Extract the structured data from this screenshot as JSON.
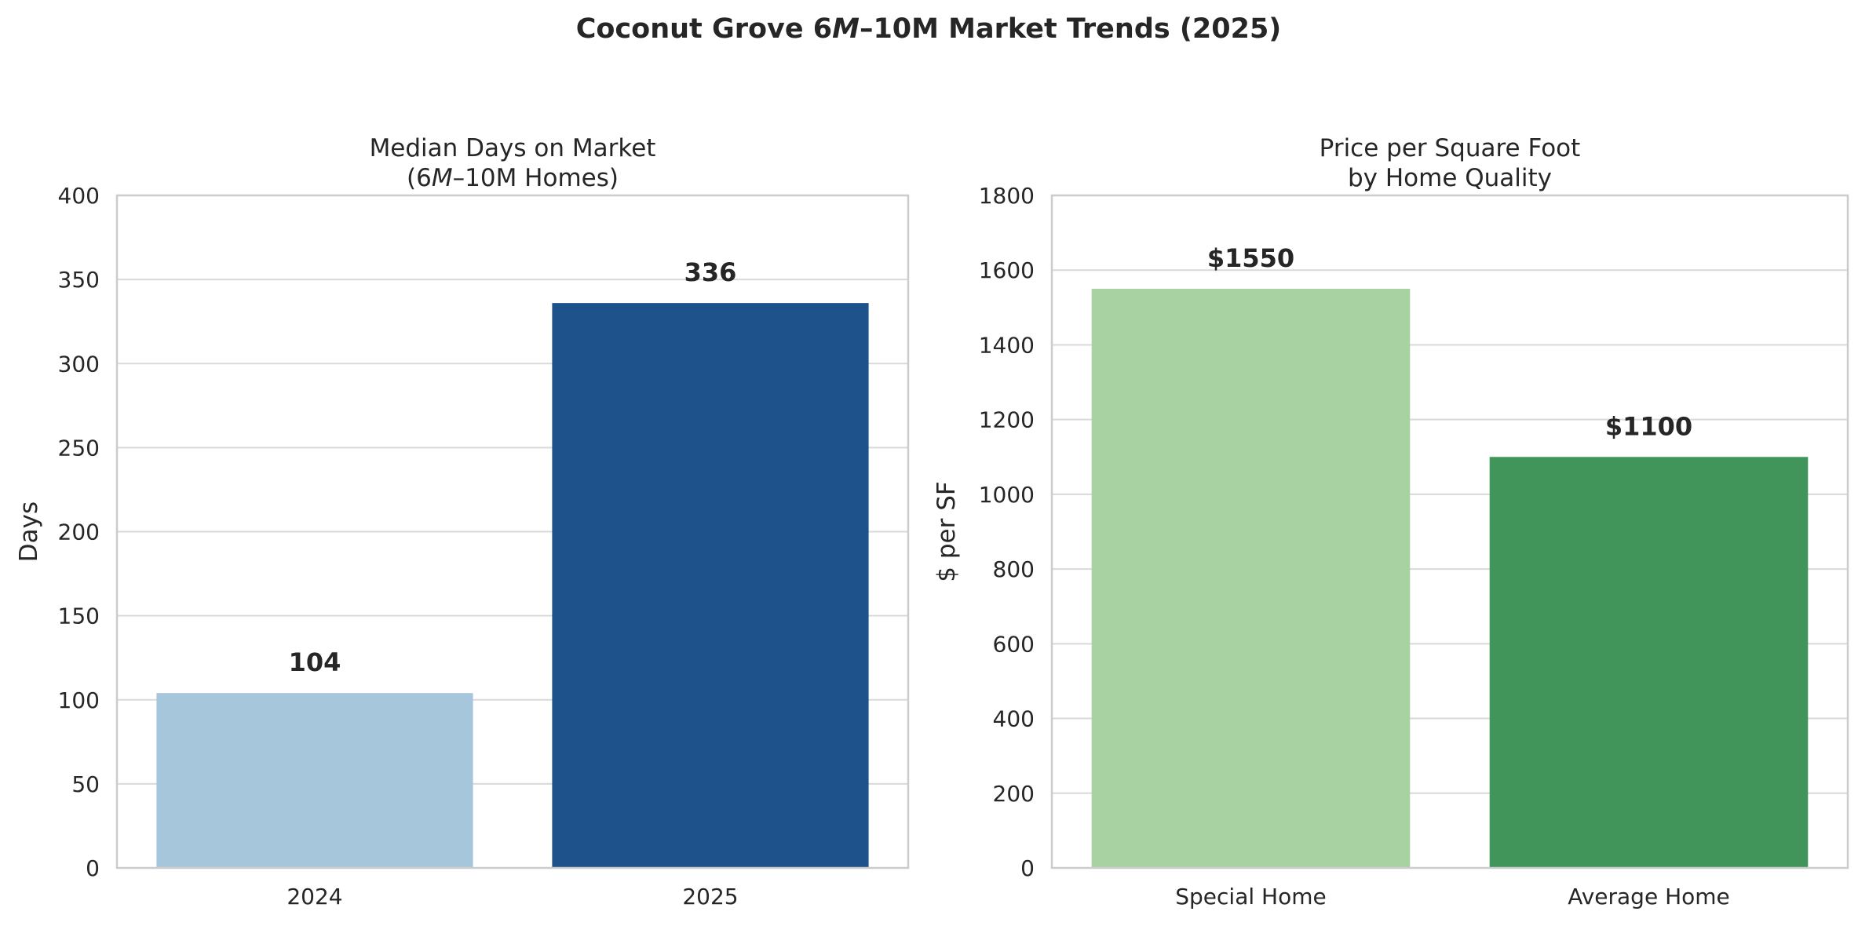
{
  "figure": {
    "suptitle": "Coconut Grove $6M–$10M Market Trends (2025)"
  },
  "chart_data": [
    {
      "type": "bar",
      "title": "Median Days on Market\n($6M–$10M Homes)",
      "xlabel": "",
      "ylabel": "Days",
      "categories": [
        "2024",
        "2025"
      ],
      "values": [
        104,
        336
      ],
      "bar_labels": [
        "104",
        "336"
      ],
      "colors": [
        "#a6c6dc",
        "#1d538a"
      ],
      "ylim": [
        0,
        400
      ],
      "yticks": [
        0,
        50,
        100,
        150,
        200,
        250,
        300,
        350,
        400
      ],
      "grid": "y"
    },
    {
      "type": "bar",
      "title": "Price per Square Foot\nby Home Quality",
      "xlabel": "",
      "ylabel": "$ per SF",
      "categories": [
        "Special Home",
        "Average Home"
      ],
      "values": [
        1550,
        1100
      ],
      "bar_labels": [
        "$1550",
        "$1100"
      ],
      "colors": [
        "#a8d2a1",
        "#41955a"
      ],
      "ylim": [
        0,
        1800
      ],
      "yticks": [
        0,
        200,
        400,
        600,
        800,
        1000,
        1200,
        1400,
        1600,
        1800
      ],
      "grid": "y"
    }
  ]
}
